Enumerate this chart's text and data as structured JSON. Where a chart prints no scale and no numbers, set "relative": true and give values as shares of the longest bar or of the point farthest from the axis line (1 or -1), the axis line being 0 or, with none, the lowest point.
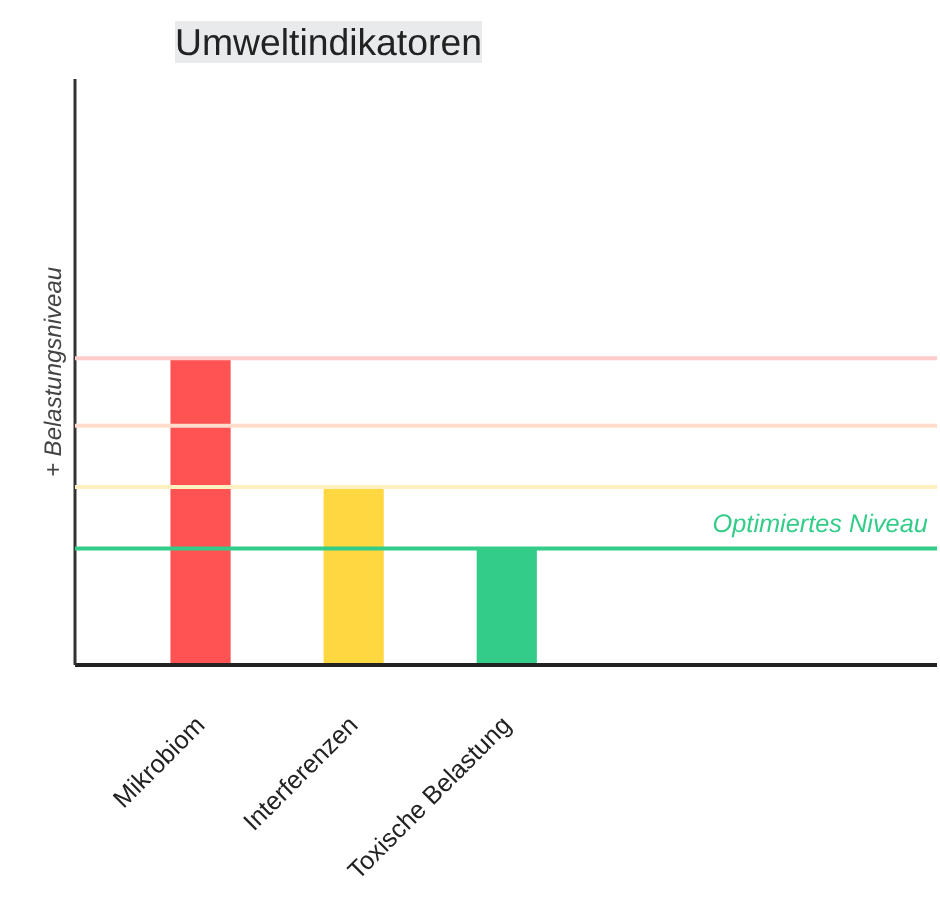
{
  "chart_data": {
    "type": "bar",
    "title": "Umweltindikatoren",
    "ylabel": "+ Belastungsniveau",
    "relative": true,
    "grid": false,
    "categories": [
      "Mikrobiom",
      "Interferenzen",
      "Toxische Belastung"
    ],
    "values": [
      1,
      0.58,
      0.38
    ],
    "colors": [
      "#ff5252",
      "#ffd740",
      "#33cc88"
    ],
    "ref_lines": [
      {
        "axis": "y",
        "value": 1,
        "label": null,
        "color": "#ffcccc"
      },
      {
        "axis": "y",
        "value": 0.78,
        "label": null,
        "color": "#ffdccc"
      },
      {
        "axis": "y",
        "value": 0.58,
        "label": null,
        "color": "#fff0c0"
      },
      {
        "axis": "y",
        "value": 0.38,
        "label": "Optimiertes Niveau",
        "color": "#33cc88"
      }
    ]
  }
}
